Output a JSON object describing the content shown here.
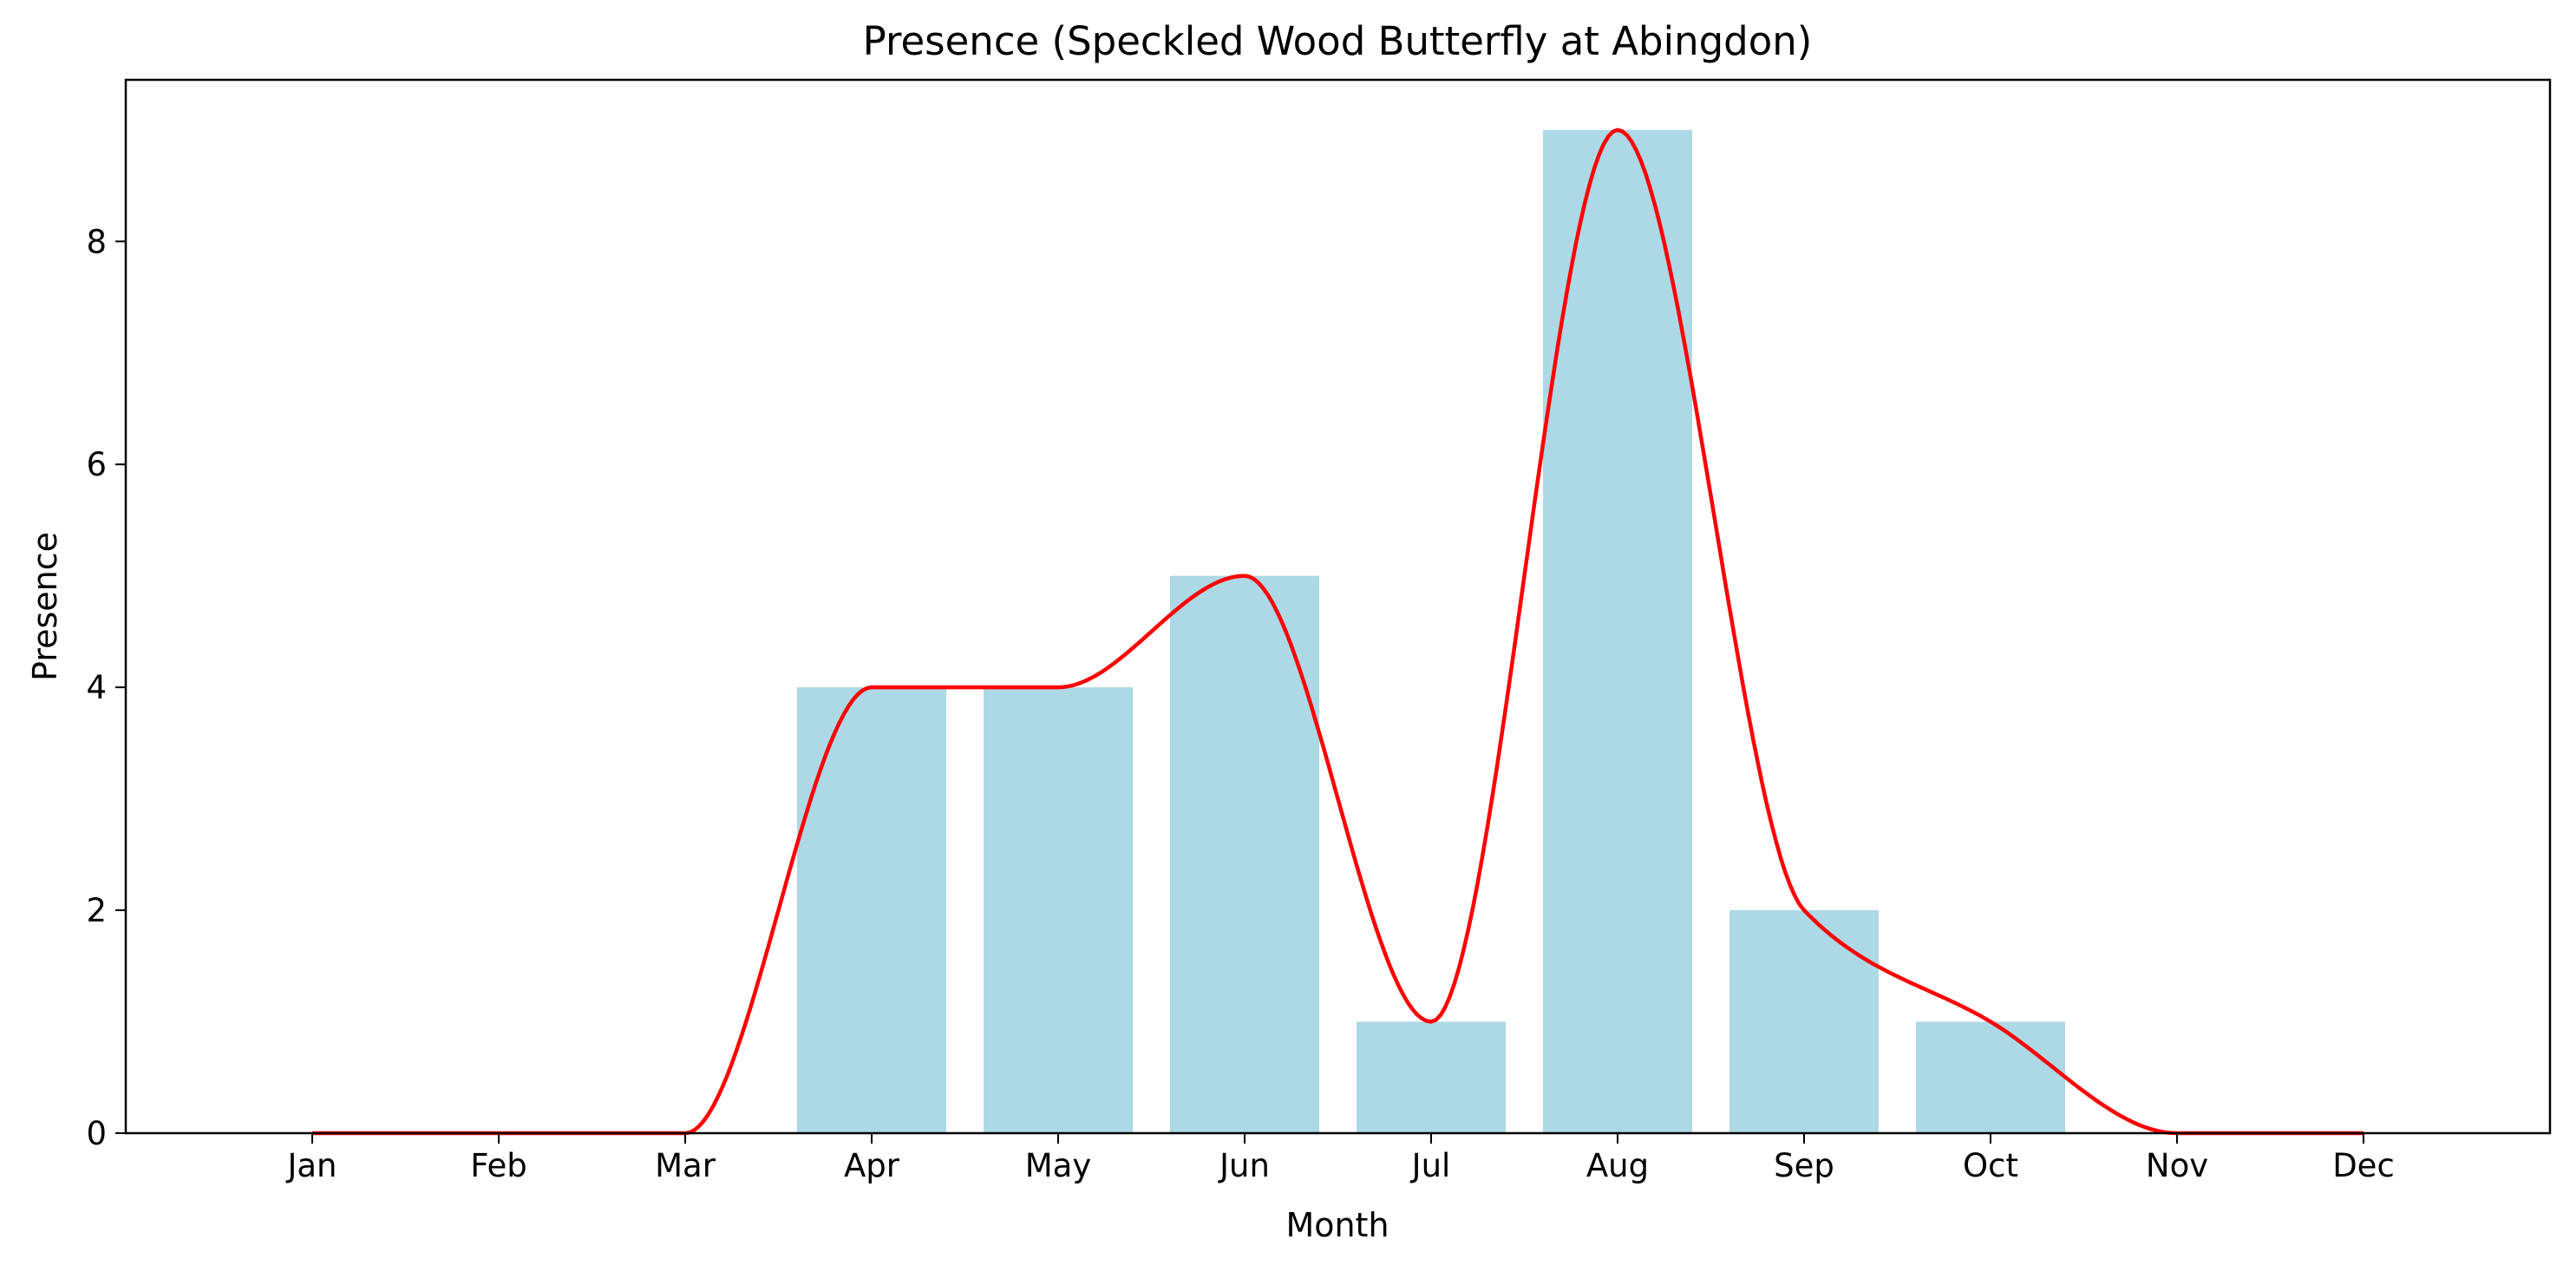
{
  "chart_data": {
    "type": "bar",
    "title": "Presence (Speckled Wood Butterfly at Abingdon)",
    "xlabel": "Month",
    "ylabel": "Presence",
    "categories": [
      "Jan",
      "Feb",
      "Mar",
      "Apr",
      "May",
      "Jun",
      "Jul",
      "Aug",
      "Sep",
      "Oct",
      "Nov",
      "Dec"
    ],
    "values": [
      0,
      0,
      0,
      4,
      4,
      5,
      1,
      9,
      2,
      1,
      0,
      0
    ],
    "ylim": [
      0,
      9.45
    ],
    "yticks": [
      0,
      2,
      4,
      6,
      8
    ],
    "grid": false,
    "bar_color": "#add8e6",
    "line_color": "#ff0000",
    "overlay": "smoothed line through bar values"
  }
}
